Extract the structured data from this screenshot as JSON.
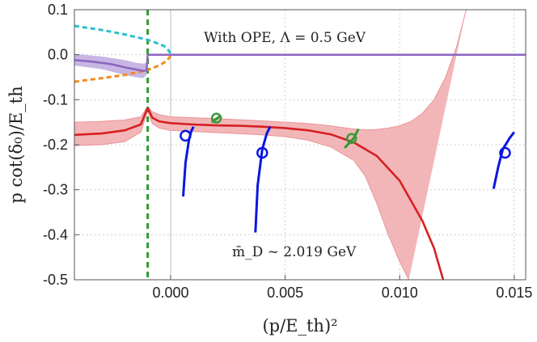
{
  "chart_data": {
    "type": "line",
    "title": "",
    "annotations": {
      "ope": "With OPE, Λ = 0.5 GeV",
      "mass": "m̄_D ∼ 2.019 GeV"
    },
    "xlabel": "(p/E_th)²",
    "ylabel": "p cot(δ₀)/E_th",
    "xlim": [
      -0.0042,
      0.0155
    ],
    "ylim": [
      -0.5,
      0.1
    ],
    "xticks": [
      {
        "value": 0.0,
        "label": "0.000"
      },
      {
        "value": 0.005,
        "label": "0.005"
      },
      {
        "value": 0.01,
        "label": "0.010"
      },
      {
        "value": 0.015,
        "label": "0.015"
      }
    ],
    "yticks": [
      {
        "value": 0.1,
        "label": "0.1"
      },
      {
        "value": 0.0,
        "label": "0.0"
      },
      {
        "value": -0.1,
        "label": "-0.1"
      },
      {
        "value": -0.2,
        "label": "-0.2"
      },
      {
        "value": -0.3,
        "label": "-0.3"
      },
      {
        "value": -0.4,
        "label": "-0.4"
      },
      {
        "value": -0.5,
        "label": "-0.5"
      }
    ],
    "grid": true,
    "colors": {
      "band": "#f2b6b8",
      "band_edge": "#e89599",
      "central": "#d62022",
      "purple": "#8a65bf",
      "purple_band": "#c8b5e3",
      "cyan": "#2bbfcf",
      "orange": "#f28a1c",
      "green": "#2e9a2e",
      "blue": "#0a17e0",
      "circle_green": "#3a9a3a"
    },
    "threshold_line_x": -0.001,
    "central_curve": [
      [
        -0.0042,
        -0.178
      ],
      [
        -0.003,
        -0.175
      ],
      [
        -0.002,
        -0.168
      ],
      [
        -0.0013,
        -0.155
      ],
      [
        -0.00102,
        -0.12
      ],
      [
        -0.00098,
        -0.12
      ],
      [
        -0.0008,
        -0.14
      ],
      [
        -0.0005,
        -0.148
      ],
      [
        0.0,
        -0.152
      ],
      [
        0.001,
        -0.155
      ],
      [
        0.002,
        -0.157
      ],
      [
        0.003,
        -0.158
      ],
      [
        0.004,
        -0.16
      ],
      [
        0.005,
        -0.163
      ],
      [
        0.006,
        -0.168
      ],
      [
        0.007,
        -0.177
      ],
      [
        0.008,
        -0.195
      ],
      [
        0.009,
        -0.225
      ],
      [
        0.01,
        -0.28
      ],
      [
        0.011,
        -0.37
      ],
      [
        0.0115,
        -0.43
      ],
      [
        0.0119,
        -0.5
      ]
    ],
    "band_upper": [
      [
        -0.0042,
        -0.15
      ],
      [
        -0.003,
        -0.148
      ],
      [
        -0.002,
        -0.145
      ],
      [
        -0.0013,
        -0.138
      ],
      [
        -0.001,
        -0.115
      ],
      [
        -0.0008,
        -0.127
      ],
      [
        -0.0005,
        -0.133
      ],
      [
        0.0,
        -0.138
      ],
      [
        0.002,
        -0.142
      ],
      [
        0.004,
        -0.147
      ],
      [
        0.006,
        -0.153
      ],
      [
        0.007,
        -0.158
      ],
      [
        0.0075,
        -0.162
      ],
      [
        0.008,
        -0.165
      ],
      [
        0.0085,
        -0.167
      ],
      [
        0.009,
        -0.166
      ],
      [
        0.0095,
        -0.163
      ],
      [
        0.01,
        -0.158
      ],
      [
        0.0105,
        -0.148
      ],
      [
        0.011,
        -0.13
      ],
      [
        0.0115,
        -0.1
      ],
      [
        0.012,
        -0.05
      ],
      [
        0.0125,
        0.02
      ],
      [
        0.0129,
        0.1
      ]
    ],
    "band_lower": [
      [
        -0.0042,
        -0.202
      ],
      [
        -0.003,
        -0.2
      ],
      [
        -0.002,
        -0.193
      ],
      [
        -0.0013,
        -0.172
      ],
      [
        -0.001,
        -0.125
      ],
      [
        -0.0008,
        -0.153
      ],
      [
        -0.0005,
        -0.163
      ],
      [
        0.0,
        -0.168
      ],
      [
        0.002,
        -0.173
      ],
      [
        0.004,
        -0.178
      ],
      [
        0.005,
        -0.182
      ],
      [
        0.006,
        -0.19
      ],
      [
        0.007,
        -0.205
      ],
      [
        0.008,
        -0.235
      ],
      [
        0.0085,
        -0.27
      ],
      [
        0.009,
        -0.33
      ],
      [
        0.0095,
        -0.4
      ],
      [
        0.01,
        -0.46
      ],
      [
        0.0104,
        -0.5
      ]
    ],
    "purple_curve": [
      [
        -0.0042,
        -0.012
      ],
      [
        -0.0035,
        -0.015
      ],
      [
        -0.003,
        -0.018
      ],
      [
        -0.0025,
        -0.022
      ],
      [
        -0.002,
        -0.028
      ],
      [
        -0.0015,
        -0.033
      ],
      [
        -0.0012,
        -0.036
      ],
      [
        -0.00105,
        -0.035
      ],
      [
        -0.001,
        -0.0
      ],
      [
        -0.001,
        0.0
      ],
      [
        0.0155,
        0.0
      ]
    ],
    "purple_band_upper": [
      [
        -0.0042,
        0.002
      ],
      [
        -0.003,
        -0.004
      ],
      [
        -0.002,
        -0.012
      ],
      [
        -0.0015,
        -0.018
      ],
      [
        -0.0012,
        -0.02
      ],
      [
        -0.00105,
        -0.018
      ]
    ],
    "purple_band_lower": [
      [
        -0.0042,
        -0.024
      ],
      [
        -0.003,
        -0.032
      ],
      [
        -0.002,
        -0.045
      ],
      [
        -0.0015,
        -0.05
      ],
      [
        -0.0012,
        -0.052
      ],
      [
        -0.00105,
        -0.045
      ]
    ],
    "cyan_dashed": [
      [
        -0.0042,
        0.064
      ],
      [
        -0.003,
        0.055
      ],
      [
        -0.002,
        0.045
      ],
      [
        -0.001,
        0.033
      ],
      [
        -0.0005,
        0.024
      ],
      [
        -0.0002,
        0.017
      ],
      [
        0.0,
        0.003
      ]
    ],
    "orange_dashed": [
      [
        -0.0042,
        -0.06
      ],
      [
        -0.003,
        -0.052
      ],
      [
        -0.002,
        -0.045
      ],
      [
        -0.001,
        -0.034
      ],
      [
        -0.0005,
        -0.024
      ],
      [
        -0.0002,
        -0.015
      ],
      [
        0.0,
        -0.003
      ]
    ],
    "blue_segments": [
      [
        [
          0.00055,
          -0.315
        ],
        [
          0.00065,
          -0.24
        ],
        [
          0.0008,
          -0.19
        ],
        [
          0.0009,
          -0.17
        ],
        [
          0.001,
          -0.16
        ]
      ],
      [
        [
          0.0037,
          -0.395
        ],
        [
          0.0038,
          -0.29
        ],
        [
          0.004,
          -0.21
        ],
        [
          0.0042,
          -0.175
        ],
        [
          0.00435,
          -0.16
        ]
      ],
      [
        [
          0.0141,
          -0.298
        ],
        [
          0.0143,
          -0.25
        ],
        [
          0.0145,
          -0.21
        ],
        [
          0.0148,
          -0.185
        ],
        [
          0.015,
          -0.172
        ]
      ]
    ],
    "blue_circles": [
      [
        0.00065,
        -0.18
      ],
      [
        0.004,
        -0.218
      ],
      [
        0.0146,
        -0.218
      ]
    ],
    "green_segments": [
      [
        [
          0.0018,
          -0.15
        ],
        [
          0.0022,
          -0.135
        ]
      ],
      [
        [
          0.0076,
          -0.207
        ],
        [
          0.008,
          -0.185
        ],
        [
          0.0082,
          -0.165
        ]
      ]
    ],
    "green_circles": [
      [
        0.002,
        -0.141
      ],
      [
        0.0079,
        -0.186
      ]
    ]
  }
}
